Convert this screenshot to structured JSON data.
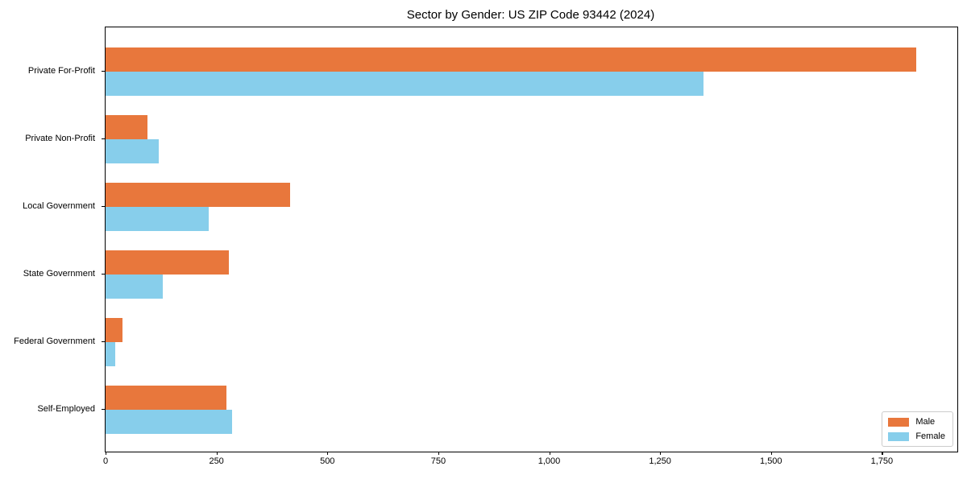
{
  "chart_data": {
    "type": "bar",
    "orientation": "horizontal",
    "title": "Sector by Gender: US ZIP Code 93442 (2024)",
    "categories": [
      "Private For-Profit",
      "Private Non-Profit",
      "Local Government",
      "State Government",
      "Federal Government",
      "Self-Employed"
    ],
    "series": [
      {
        "name": "Male",
        "color": "#e8773c",
        "values": [
          1828,
          94,
          415,
          277,
          38,
          273
        ]
      },
      {
        "name": "Female",
        "color": "#87ceeb",
        "values": [
          1348,
          120,
          233,
          129,
          21,
          285
        ]
      }
    ],
    "xlabel": "",
    "ylabel": "",
    "xlim": [
      0,
      1920
    ],
    "x_ticks": [
      0,
      250,
      500,
      750,
      1000,
      1250,
      1500,
      1750
    ],
    "x_tick_labels": [
      "0",
      "250",
      "500",
      "750",
      "1,000",
      "1,250",
      "1,500",
      "1,750"
    ],
    "grid": false,
    "legend_position": "lower right"
  }
}
